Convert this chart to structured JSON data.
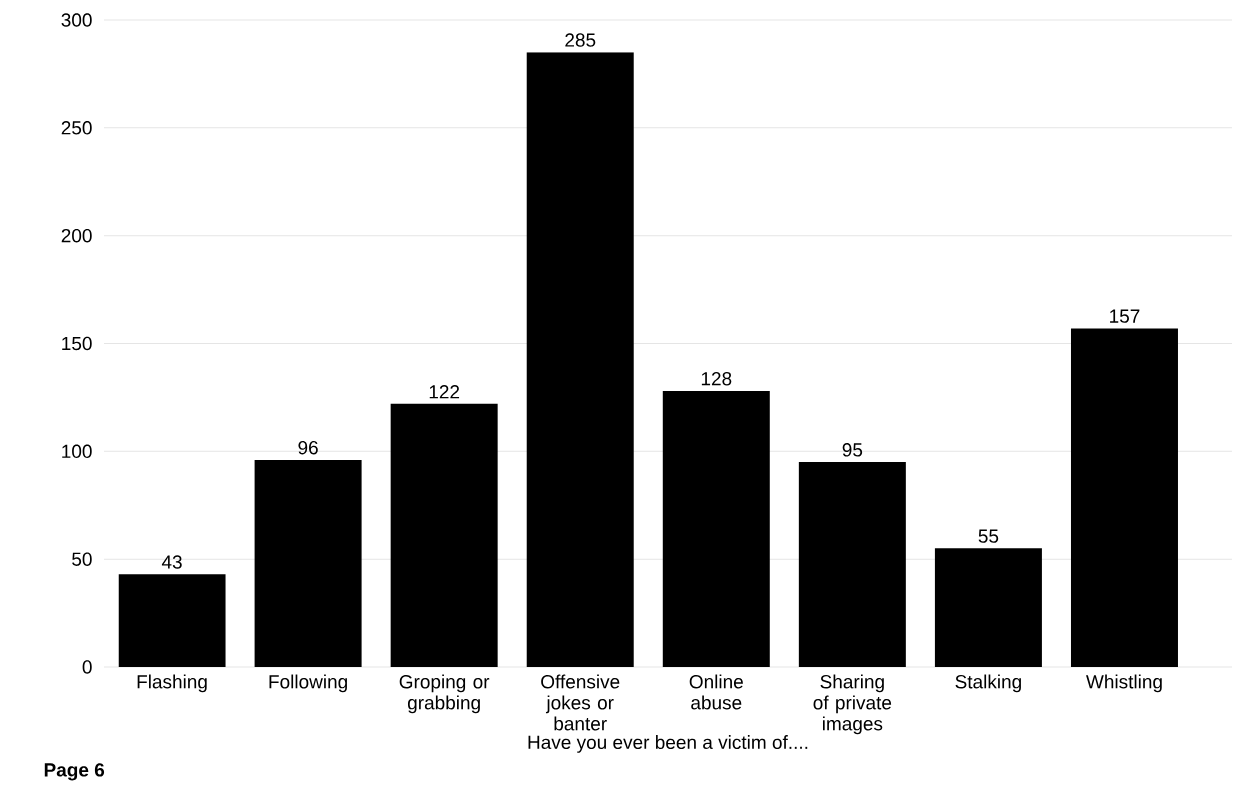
{
  "chart_data": {
    "type": "bar",
    "xlabel": "Have you ever been a victim of....",
    "categories": [
      "Flashing",
      "Following",
      "Groping or grabbing",
      "Offensive jokes or banter",
      "Online abuse",
      "Sharing of private images",
      "Stalking",
      "Whistling"
    ],
    "values": [
      43,
      96,
      122,
      285,
      128,
      95,
      55,
      157
    ],
    "color": "#000000",
    "ylim": [
      0,
      300
    ],
    "yticks": [
      0,
      50,
      100,
      150,
      200,
      250,
      300
    ],
    "grid": "y",
    "data_labels": true,
    "annotations": [
      "Page 6"
    ]
  }
}
